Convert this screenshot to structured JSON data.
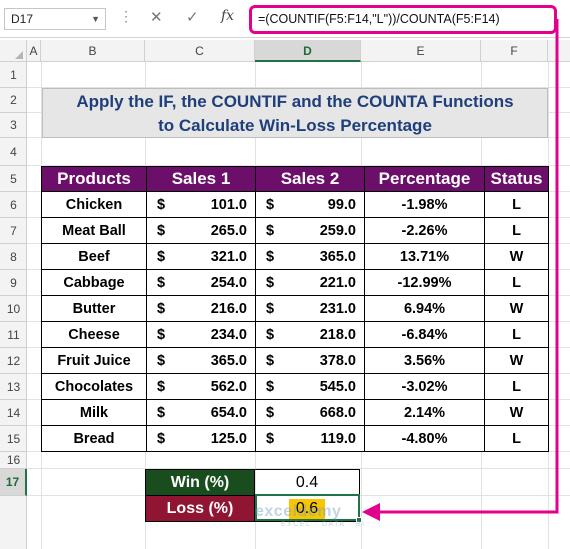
{
  "name_box": "D17",
  "formula_bar": {
    "fx": "fx",
    "cancel": "✕",
    "enter": "✓",
    "formula": "=(COUNTIF(F5:F14,\"L\"))/COUNTA(F5:F14)"
  },
  "columns": [
    "A",
    "B",
    "C",
    "D",
    "E",
    "F"
  ],
  "rows": [
    "1",
    "2",
    "3",
    "4",
    "5",
    "6",
    "7",
    "8",
    "9",
    "10",
    "11",
    "12",
    "13",
    "14",
    "15",
    "16",
    "17"
  ],
  "title_line1": "Apply the IF, the COUNTIF and the COUNTA Functions",
  "title_line2": "to Calculate Win-Loss Percentage",
  "headers": [
    "Products",
    "Sales 1",
    "Sales 2",
    "Percentage",
    "Status"
  ],
  "currency": "$",
  "table": [
    {
      "product": "Chicken",
      "s1": "101.0",
      "s2": "99.0",
      "pct": "-1.98%",
      "status": "L"
    },
    {
      "product": "Meat Ball",
      "s1": "265.0",
      "s2": "259.0",
      "pct": "-2.26%",
      "status": "L"
    },
    {
      "product": "Beef",
      "s1": "321.0",
      "s2": "365.0",
      "pct": "13.71%",
      "status": "W"
    },
    {
      "product": "Cabbage",
      "s1": "254.0",
      "s2": "221.0",
      "pct": "-12.99%",
      "status": "L"
    },
    {
      "product": "Butter",
      "s1": "216.0",
      "s2": "231.0",
      "pct": "6.94%",
      "status": "W"
    },
    {
      "product": "Cheese",
      "s1": "234.0",
      "s2": "218.0",
      "pct": "-6.84%",
      "status": "L"
    },
    {
      "product": "Fruit Juice",
      "s1": "365.0",
      "s2": "378.0",
      "pct": "3.56%",
      "status": "W"
    },
    {
      "product": "Chocolates",
      "s1": "562.0",
      "s2": "545.0",
      "pct": "-3.02%",
      "status": "L"
    },
    {
      "product": "Milk",
      "s1": "654.0",
      "s2": "668.0",
      "pct": "2.14%",
      "status": "W"
    },
    {
      "product": "Bread",
      "s1": "125.0",
      "s2": "119.0",
      "pct": "-4.80%",
      "status": "L"
    }
  ],
  "summary": {
    "win_label": "Win (%)",
    "win_value": "0.4",
    "loss_label": "Loss (%)",
    "loss_value": "0.6"
  },
  "watermark": {
    "name": "exceldemy",
    "tagline": "EXCEL · DATA · BI"
  },
  "colors": {
    "header_bg": "#6b0f6b",
    "title_text": "#1f3f7a",
    "win_bg": "#194d1e",
    "loss_bg": "#8f1533",
    "highlight": "#e3008c",
    "selection": "#217346"
  }
}
